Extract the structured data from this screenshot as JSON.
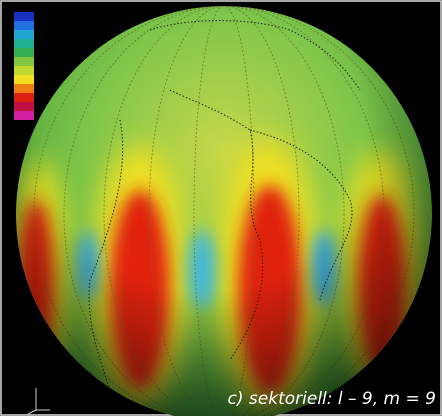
{
  "caption": "c) sektoriell: l – 9, m = 9"
}
